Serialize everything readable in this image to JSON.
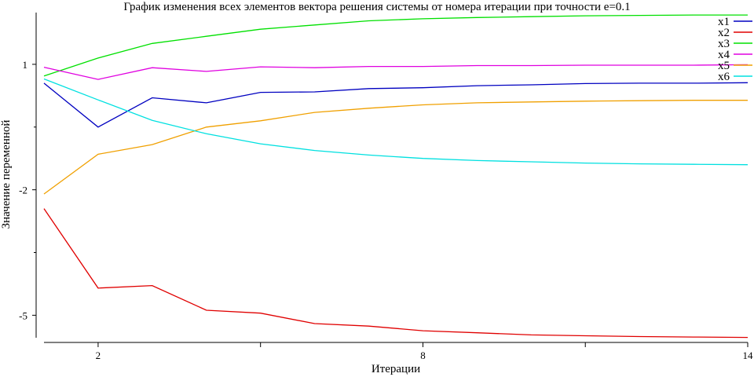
{
  "chart_data": {
    "type": "line",
    "title": "График изменения всех элементов вектора решения системы от номера итерации при точности e=0.1",
    "xlabel": "Итерации",
    "ylabel": "Значение переменной",
    "xlim": [
      1,
      14
    ],
    "ylim": [
      -5.5,
      2.2
    ],
    "x_ticks": [
      2,
      5,
      8,
      11,
      14
    ],
    "x_tick_labels": [
      "2",
      "",
      "8",
      "",
      "14"
    ],
    "y_ticks": [
      -5,
      -2,
      1
    ],
    "y_tick_labels": [
      "-5",
      "-2",
      "1"
    ],
    "grid": false,
    "legend_position": "top-right",
    "x": [
      1,
      2,
      3,
      4,
      5,
      6,
      7,
      8,
      9,
      10,
      11,
      12,
      13,
      14
    ],
    "series": [
      {
        "name": "x1",
        "color": "#0000c0",
        "values": [
          0.55,
          -0.5,
          0.2,
          0.08,
          0.33,
          0.34,
          0.42,
          0.44,
          0.49,
          0.51,
          0.54,
          0.55,
          0.55,
          0.56
        ]
      },
      {
        "name": "x2",
        "color": "#e00000",
        "values": [
          -2.45,
          -4.35,
          -4.29,
          -4.88,
          -4.95,
          -5.2,
          -5.26,
          -5.37,
          -5.42,
          -5.47,
          -5.49,
          -5.51,
          -5.52,
          -5.53
        ]
      },
      {
        "name": "x3",
        "color": "#00e000",
        "values": [
          0.72,
          1.15,
          1.5,
          1.67,
          1.84,
          1.94,
          2.04,
          2.09,
          2.12,
          2.14,
          2.16,
          2.17,
          2.18,
          2.18
        ]
      },
      {
        "name": "x4",
        "color": "#e000e0",
        "values": [
          0.93,
          0.64,
          0.92,
          0.83,
          0.94,
          0.92,
          0.95,
          0.95,
          0.97,
          0.97,
          0.98,
          0.98,
          0.98,
          0.99
        ]
      },
      {
        "name": "x5",
        "color": "#f0a000",
        "values": [
          -2.1,
          -1.15,
          -0.92,
          -0.5,
          -0.35,
          -0.15,
          -0.05,
          0.03,
          0.08,
          0.1,
          0.12,
          0.13,
          0.14,
          0.14
        ]
      },
      {
        "name": "x6",
        "color": "#00e0e0",
        "values": [
          0.65,
          0.15,
          -0.34,
          -0.66,
          -0.9,
          -1.06,
          -1.17,
          -1.25,
          -1.3,
          -1.33,
          -1.36,
          -1.38,
          -1.39,
          -1.4
        ]
      }
    ]
  }
}
